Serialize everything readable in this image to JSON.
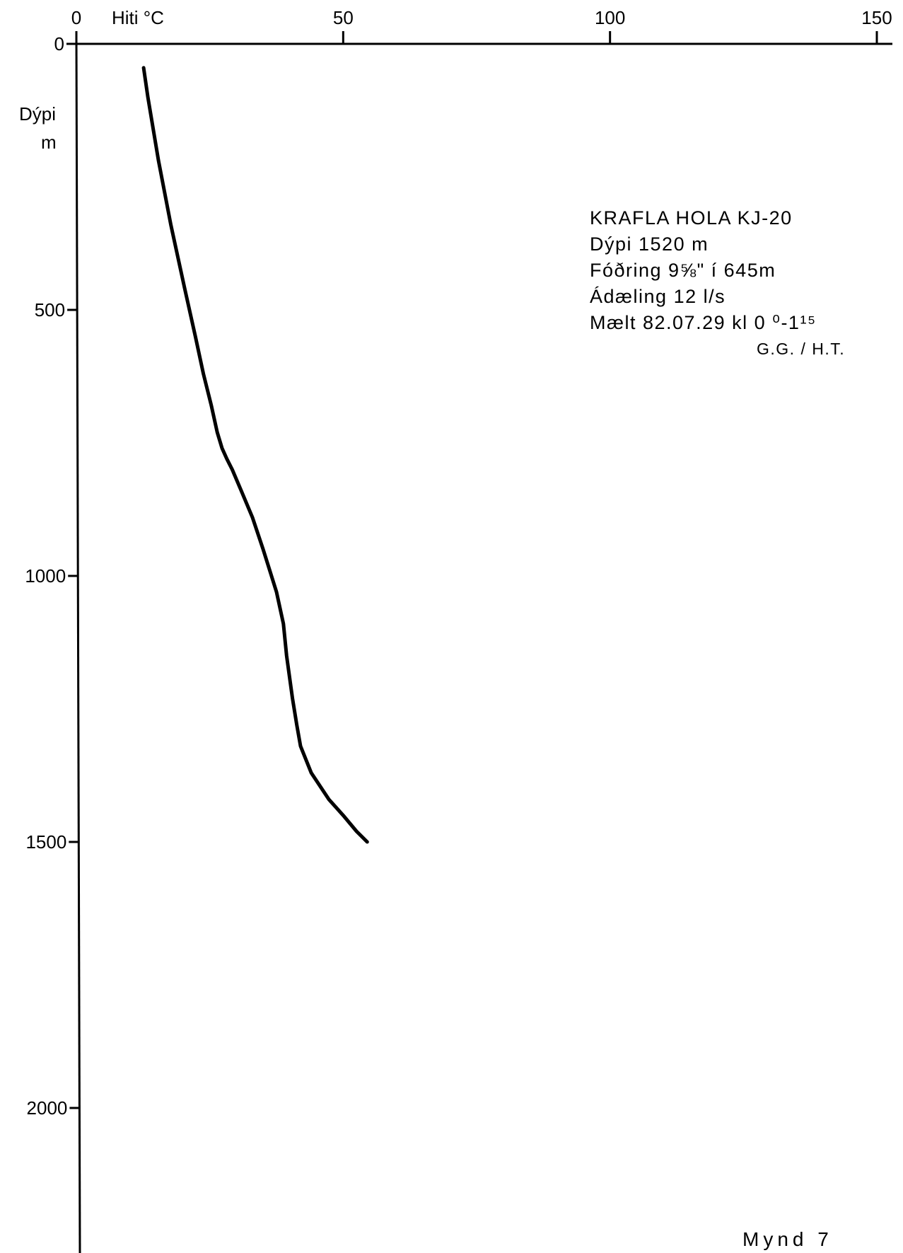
{
  "chart_data": {
    "type": "line",
    "xlabel": "Hiti °C",
    "ylabel": "Dýpi",
    "ylabel_unit": "m",
    "x_axis_position": "top",
    "y_inverted": true,
    "xlim": [
      0,
      150
    ],
    "ylim": [
      0,
      2250
    ],
    "x_ticks": [
      0,
      50,
      100,
      150
    ],
    "y_ticks": [
      0,
      500,
      1000,
      1500,
      2000
    ],
    "grid": false,
    "series": [
      {
        "x": [
          12.6,
          13.4,
          15.4,
          17.7,
          20.3,
          22.3,
          23.8,
          25.3,
          26.4,
          27.3,
          28.2,
          29.2,
          30.9,
          33.0,
          35.0,
          37.5,
          38.8,
          39.4,
          40.5,
          41.3,
          42.0,
          44.0,
          47.3,
          50.0,
          52.5,
          54.5
        ],
        "y": [
          45,
          100,
          220,
          340,
          460,
          550,
          620,
          680,
          730,
          760,
          780,
          800,
          840,
          890,
          950,
          1030,
          1090,
          1150,
          1230,
          1280,
          1320,
          1370,
          1420,
          1450,
          1480,
          1500
        ]
      }
    ]
  },
  "annotation": {
    "lines": [
      "KRAFLA HOLA KJ-20",
      "Dýpi 1520 m",
      "Fóðring 9⅝\" í 645m",
      "Ádæling 12 l/s",
      "Mælt 82.07.29 kl 0 ⁰-1¹⁵"
    ],
    "signature": "G.G. / H.T."
  },
  "corner_text": "Mynd 7"
}
